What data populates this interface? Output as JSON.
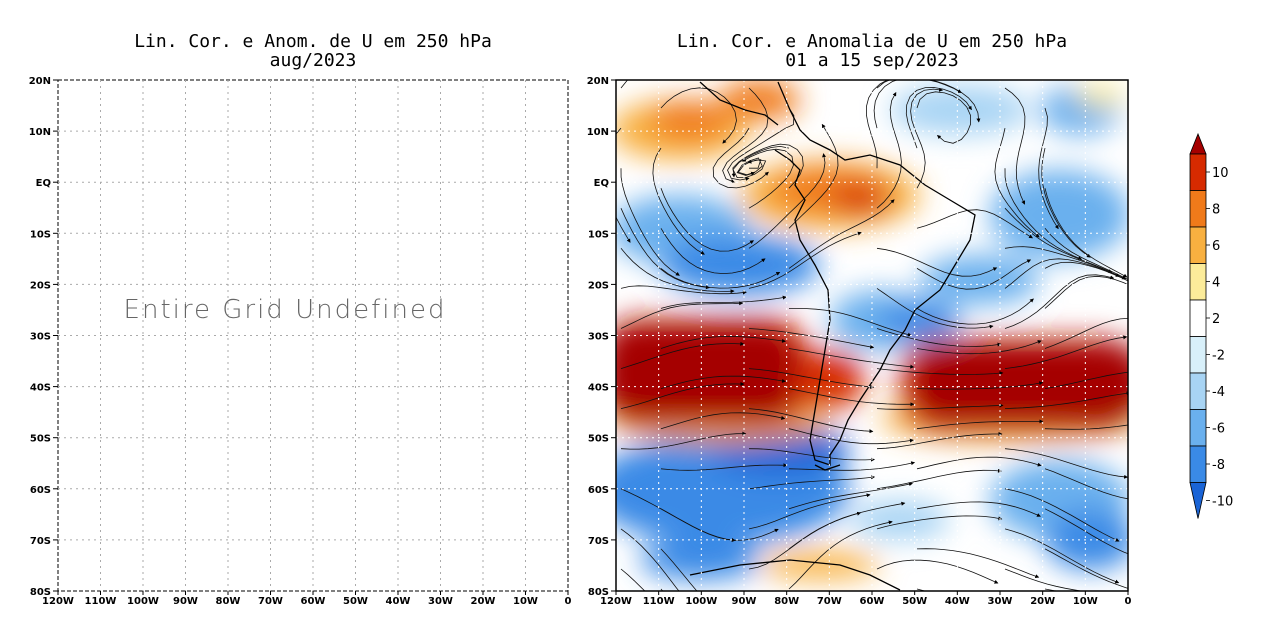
{
  "left_panel": {
    "title_line1": "Lin. Cor. e Anom. de U em 250 hPa",
    "title_line2": "aug/2023",
    "message": "Entire Grid Undefined",
    "lat_labels": [
      "20N",
      "10N",
      "EQ",
      "10S",
      "20S",
      "30S",
      "40S",
      "50S",
      "60S",
      "70S",
      "80S"
    ],
    "lon_labels": [
      "120W",
      "110W",
      "100W",
      "90W",
      "80W",
      "70W",
      "60W",
      "50W",
      "40W",
      "30W",
      "20W",
      "10W",
      "0"
    ]
  },
  "right_panel": {
    "title_line1": "Lin. Cor. e Anomalia de U em 250 hPa",
    "title_line2": "01 a 15 sep/2023",
    "lat_labels": [
      "20N",
      "10N",
      "EQ",
      "10S",
      "20S",
      "30S",
      "40S",
      "50S",
      "60S",
      "70S",
      "80S"
    ],
    "lon_labels": [
      "120W",
      "110W",
      "100W",
      "90W",
      "80W",
      "70W",
      "60W",
      "50W",
      "40W",
      "30W",
      "20W",
      "10W",
      "0"
    ]
  },
  "colorbar": {
    "labels": [
      "10",
      "8",
      "6",
      "4",
      "2",
      "-2",
      "-4",
      "-6",
      "-8",
      "-10"
    ],
    "colors": [
      "#a50000",
      "#d62a00",
      "#f07a1a",
      "#f8b040",
      "#fcec9a",
      "#ffffff",
      "#d8f0fa",
      "#a8d4f4",
      "#6ab0ee",
      "#3a8ae6",
      "#1a64d6"
    ]
  }
}
